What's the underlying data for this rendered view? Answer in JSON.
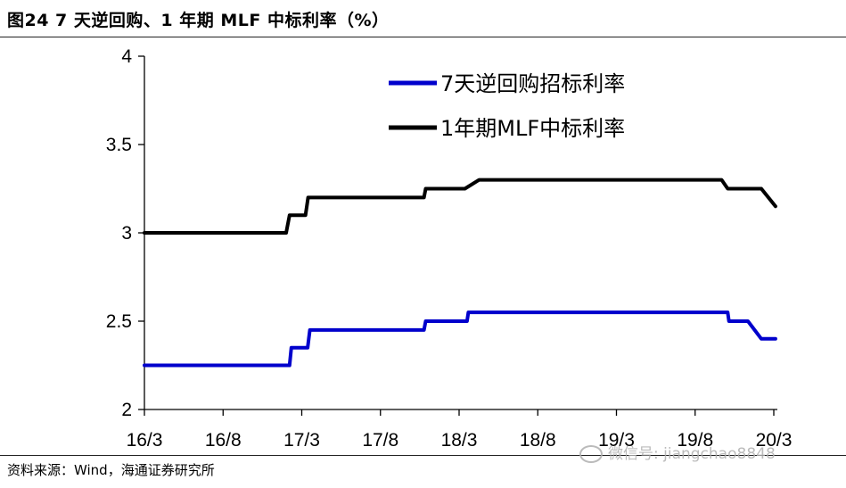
{
  "figure": {
    "title": "图24 7 天逆回购、1 年期 MLF 中标利率（%）",
    "source": "资料来源：Wind，海通证券研究所",
    "watermark": "微信号: jiangchao8848"
  },
  "chart_data": {
    "type": "line",
    "title": "",
    "xlabel": "",
    "ylabel": "",
    "ylim": [
      2,
      4
    ],
    "yticks": [
      "2",
      "2.5",
      "3",
      "3.5",
      "4"
    ],
    "xticks": [
      "16/3",
      "16/8",
      "17/3",
      "17/8",
      "18/3",
      "18/8",
      "19/3",
      "19/8",
      "20/3"
    ],
    "legend_position": "top-right",
    "grid": false,
    "series": [
      {
        "name": "7天逆回购招标利率",
        "color": "#0000cc",
        "points": [
          [
            "2016-03-01",
            2.25
          ],
          [
            "2017-02-01",
            2.25
          ],
          [
            "2017-02-05",
            2.35
          ],
          [
            "2017-03-15",
            2.35
          ],
          [
            "2017-03-20",
            2.45
          ],
          [
            "2017-12-10",
            2.45
          ],
          [
            "2017-12-14",
            2.5
          ],
          [
            "2018-03-20",
            2.5
          ],
          [
            "2018-03-23",
            2.55
          ],
          [
            "2019-11-15",
            2.55
          ],
          [
            "2019-11-18",
            2.5
          ],
          [
            "2020-01-01",
            2.5
          ],
          [
            "2020-02-01",
            2.4
          ],
          [
            "2020-03-05",
            2.4
          ]
        ]
      },
      {
        "name": "1年期MLF中标利率",
        "color": "#000000",
        "points": [
          [
            "2016-03-01",
            3.0
          ],
          [
            "2017-01-24",
            3.0
          ],
          [
            "2017-02-01",
            3.1
          ],
          [
            "2017-03-10",
            3.1
          ],
          [
            "2017-03-16",
            3.2
          ],
          [
            "2017-12-10",
            3.2
          ],
          [
            "2017-12-14",
            3.25
          ],
          [
            "2018-03-15",
            3.25
          ],
          [
            "2018-04-17",
            3.3
          ],
          [
            "2019-11-01",
            3.3
          ],
          [
            "2019-11-15",
            3.25
          ],
          [
            "2020-02-01",
            3.25
          ],
          [
            "2020-03-05",
            3.15
          ]
        ]
      }
    ]
  }
}
